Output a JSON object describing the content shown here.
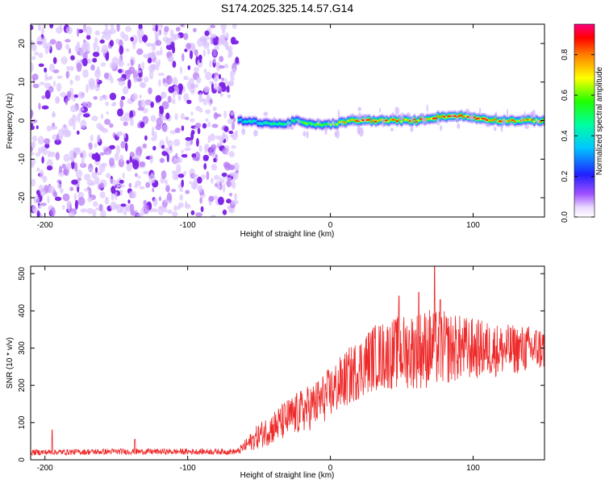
{
  "title": "S174.2025.325.14.57.G14",
  "colors": {
    "snr_line": "#ee2a2a",
    "noise_blob": "#8a2be2",
    "axis": "#000000"
  },
  "chart_data": [
    {
      "type": "heatmap",
      "title": "S174.2025.325.14.57.G14",
      "xlabel": "Height of straight line (km)",
      "ylabel": "Frequency (Hz)",
      "xlim": [
        -210,
        150
      ],
      "ylim": [
        -25,
        25
      ],
      "x_ticks": [
        -200,
        -100,
        0,
        100
      ],
      "x_tick_labels": [
        "-200",
        "-100",
        "0",
        "100"
      ],
      "y_ticks": [
        -20,
        -10,
        0,
        10,
        20
      ],
      "y_tick_labels": [
        "-20",
        "-10",
        "0",
        "10",
        "20"
      ],
      "colorbar": {
        "label": "Normalized spectral amplitude",
        "range": [
          0,
          0.95
        ],
        "ticks": [
          0.0,
          0.2,
          0.4,
          0.6,
          0.8
        ],
        "tick_labels": [
          "0.0",
          "0.2",
          "0.4",
          "0.6",
          "0.8"
        ],
        "colormap": "rainbow"
      },
      "noise_region": {
        "x_range": [
          -210,
          -65
        ],
        "typical_amplitude": 0.1
      },
      "signal_track": {
        "x_start": -65,
        "x_end": 150,
        "frequency_points": [
          {
            "x": -65,
            "f": 0.0
          },
          {
            "x": -50,
            "f": -0.5
          },
          {
            "x": -35,
            "f": -1.0
          },
          {
            "x": -25,
            "f": 0.0
          },
          {
            "x": -15,
            "f": -1.0
          },
          {
            "x": 0,
            "f": -1.0
          },
          {
            "x": 15,
            "f": 0.0
          },
          {
            "x": 30,
            "f": 0.0
          },
          {
            "x": 45,
            "f": 0.0
          },
          {
            "x": 60,
            "f": 0.0
          },
          {
            "x": 75,
            "f": 1.0
          },
          {
            "x": 90,
            "f": 1.2
          },
          {
            "x": 105,
            "f": 0.5
          },
          {
            "x": 120,
            "f": 0.0
          },
          {
            "x": 150,
            "f": 0.0
          }
        ],
        "amplitude_points": [
          {
            "x": -65,
            "a": 0.4
          },
          {
            "x": -40,
            "a": 0.5
          },
          {
            "x": -10,
            "a": 0.6
          },
          {
            "x": 10,
            "a": 0.75
          },
          {
            "x": 25,
            "a": 0.9
          },
          {
            "x": 45,
            "a": 0.85
          },
          {
            "x": 60,
            "a": 0.8
          },
          {
            "x": 80,
            "a": 0.85
          },
          {
            "x": 100,
            "a": 0.85
          },
          {
            "x": 120,
            "a": 0.8
          },
          {
            "x": 150,
            "a": 0.75
          }
        ]
      }
    },
    {
      "type": "line",
      "xlabel": "Height of straight line (km)",
      "ylabel": "SNR (10 * v/v)",
      "xlim": [
        -210,
        150
      ],
      "ylim": [
        0,
        520
      ],
      "x_ticks": [
        -200,
        -100,
        0,
        100
      ],
      "x_tick_labels": [
        "-200",
        "-100",
        "0",
        "100"
      ],
      "y_ticks": [
        0,
        100,
        200,
        300,
        400,
        500
      ],
      "y_tick_labels": [
        "0",
        "100",
        "200",
        "300",
        "400",
        "500"
      ],
      "series": [
        {
          "color": "#ee2a2a",
          "envelope": [
            {
              "x": -210,
              "mean": 20,
              "spread": 8
            },
            {
              "x": -150,
              "mean": 22,
              "spread": 8
            },
            {
              "x": -100,
              "mean": 22,
              "spread": 8
            },
            {
              "x": -65,
              "mean": 22,
              "spread": 8
            },
            {
              "x": -50,
              "mean": 65,
              "spread": 35
            },
            {
              "x": -30,
              "mean": 110,
              "spread": 55
            },
            {
              "x": -10,
              "mean": 150,
              "spread": 65
            },
            {
              "x": 0,
              "mean": 180,
              "spread": 70
            },
            {
              "x": 15,
              "mean": 230,
              "spread": 80
            },
            {
              "x": 30,
              "mean": 275,
              "spread": 90
            },
            {
              "x": 50,
              "mean": 290,
              "spread": 100
            },
            {
              "x": 70,
              "mean": 300,
              "spread": 110
            },
            {
              "x": 90,
              "mean": 300,
              "spread": 90
            },
            {
              "x": 120,
              "mean": 295,
              "spread": 70
            },
            {
              "x": 150,
              "mean": 300,
              "spread": 60
            }
          ],
          "peaks": [
            {
              "x": -195,
              "y": 80
            },
            {
              "x": -137,
              "y": 55
            },
            {
              "x": 48,
              "y": 440
            },
            {
              "x": 62,
              "y": 450
            },
            {
              "x": 73,
              "y": 520
            },
            {
              "x": 77,
              "y": 430
            }
          ]
        }
      ]
    }
  ]
}
